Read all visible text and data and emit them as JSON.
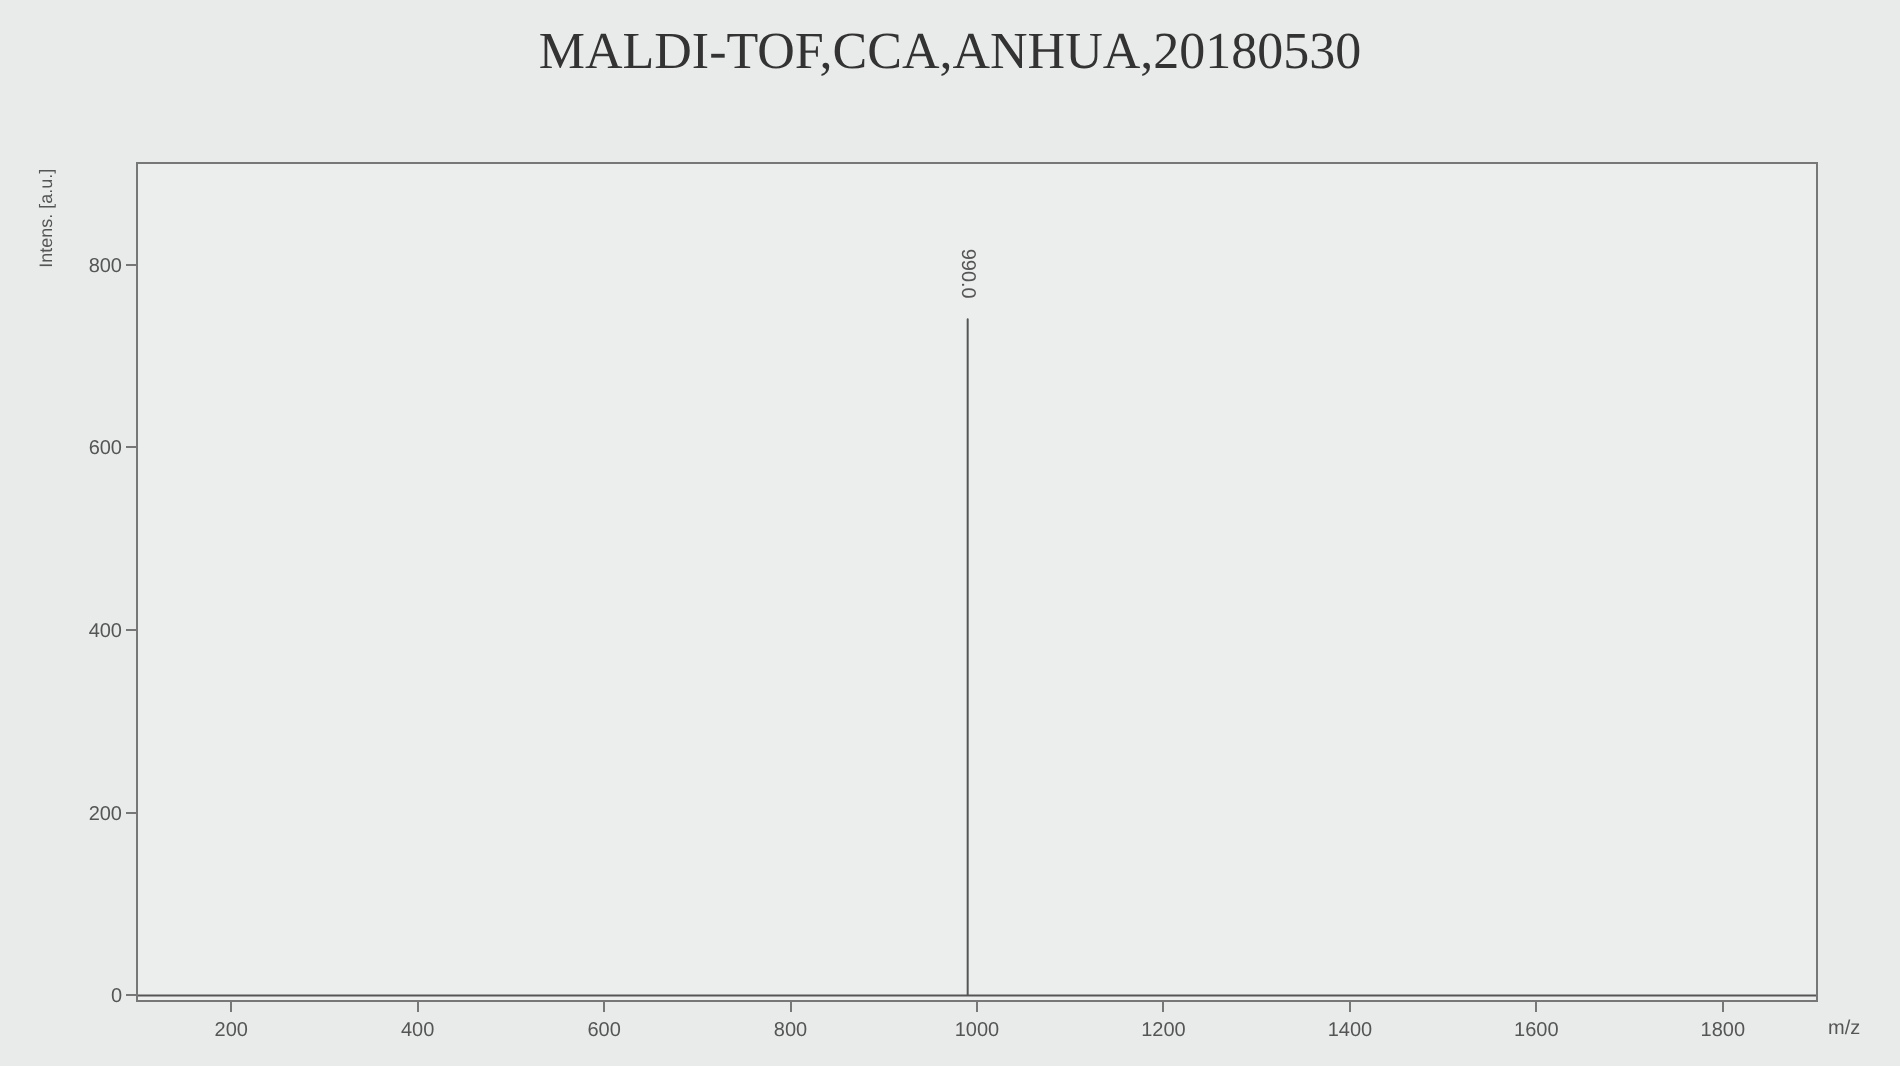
{
  "chart_data": {
    "type": "line",
    "title": "MALDI-TOF,CCA,ANHUA,20180530",
    "xlabel": "m/z",
    "ylabel": "Intens. [a.u.]",
    "x": [
      100,
      990,
      990,
      990,
      1900
    ],
    "series": [
      {
        "color": "#555555",
        "values": [
          0,
          0,
          740,
          0,
          0
        ]
      }
    ],
    "annotations": [
      {
        "text": "990.0",
        "x": 990,
        "y": 740
      }
    ],
    "xlim": [
      100,
      1900
    ],
    "xticks": [
      200,
      400,
      600,
      800,
      1000,
      1200,
      1400,
      1600,
      1800
    ],
    "ylim": [
      -5,
      910
    ],
    "yticks": [
      0,
      200,
      400,
      600,
      800
    ],
    "grid": false,
    "marker": "none",
    "line_style": "solid"
  }
}
